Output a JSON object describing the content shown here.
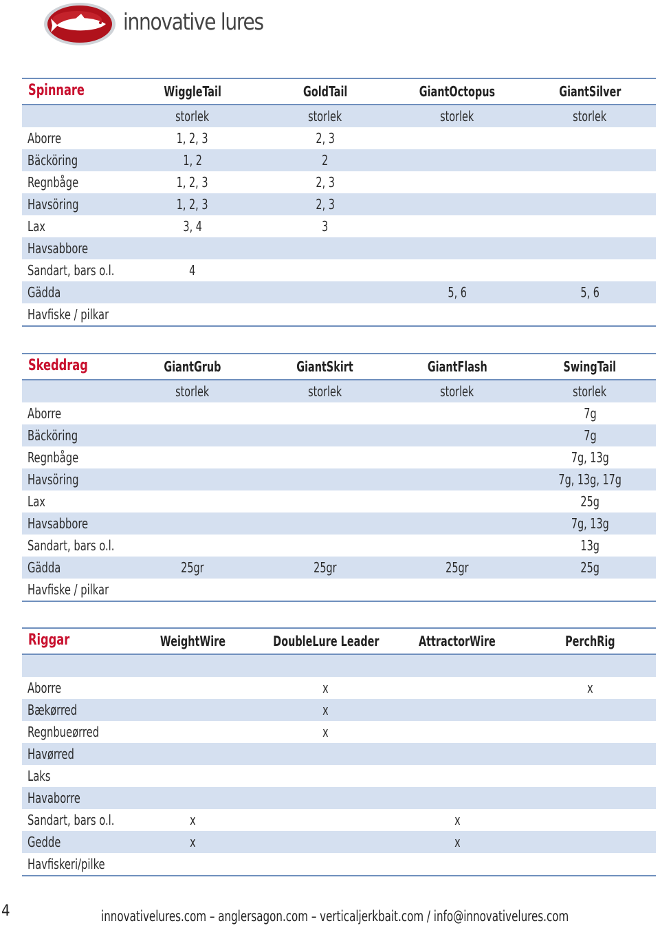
{
  "brand": {
    "name": "innovative lures",
    "logo_icon": "fish-logo-icon"
  },
  "sections": [
    {
      "title": "Spinnare",
      "columns": [
        "WiggleTail",
        "GoldTail",
        "GiantOctopus",
        "GiantSilver"
      ],
      "subheader": [
        "storlek",
        "storlek",
        "storlek",
        "storlek"
      ],
      "rows": [
        {
          "label": "Aborre",
          "cells": [
            "1, 2, 3",
            "2, 3",
            "",
            ""
          ]
        },
        {
          "label": "Bäcköring",
          "cells": [
            "1, 2",
            "2",
            "",
            ""
          ]
        },
        {
          "label": "Regnbåge",
          "cells": [
            "1, 2, 3",
            "2, 3",
            "",
            ""
          ]
        },
        {
          "label": "Havsöring",
          "cells": [
            "1, 2, 3",
            "2, 3",
            "",
            ""
          ]
        },
        {
          "label": "Lax",
          "cells": [
            "3, 4",
            "3",
            "",
            ""
          ]
        },
        {
          "label": "Havsabbore",
          "cells": [
            "",
            "",
            "",
            ""
          ]
        },
        {
          "label": "Sandart, bars o.l.",
          "cells": [
            "4",
            "",
            "",
            ""
          ]
        },
        {
          "label": "Gädda",
          "cells": [
            "",
            "",
            "5, 6",
            "5, 6"
          ]
        },
        {
          "label": "Havfiske / pilkar",
          "cells": [
            "",
            "",
            "",
            ""
          ]
        }
      ]
    },
    {
      "title": "Skeddrag",
      "columns": [
        "GiantGrub",
        "GiantSkirt",
        "GiantFlash",
        "SwingTail"
      ],
      "subheader": [
        "storlek",
        "storlek",
        "storlek",
        "storlek"
      ],
      "rows": [
        {
          "label": "Aborre",
          "cells": [
            "",
            "",
            "",
            "7g"
          ]
        },
        {
          "label": "Bäcköring",
          "cells": [
            "",
            "",
            "",
            "7g"
          ]
        },
        {
          "label": "Regnbåge",
          "cells": [
            "",
            "",
            "",
            "7g, 13g"
          ]
        },
        {
          "label": "Havsöring",
          "cells": [
            "",
            "",
            "",
            "7g, 13g, 17g"
          ]
        },
        {
          "label": "Lax",
          "cells": [
            "",
            "",
            "",
            "25g"
          ]
        },
        {
          "label": "Havsabbore",
          "cells": [
            "",
            "",
            "",
            "7g, 13g"
          ]
        },
        {
          "label": "Sandart, bars o.l.",
          "cells": [
            "",
            "",
            "",
            "13g"
          ]
        },
        {
          "label": "Gädda",
          "cells": [
            "25gr",
            "25gr",
            "25gr",
            "25g"
          ]
        },
        {
          "label": "Havfiske / pilkar",
          "cells": [
            "",
            "",
            "",
            ""
          ]
        }
      ]
    },
    {
      "title": "Riggar",
      "columns": [
        "WeightWire",
        "DoubleLure Leader",
        "AttractorWire",
        "PerchRig"
      ],
      "subheader": [
        "",
        "",
        "",
        ""
      ],
      "rows": [
        {
          "label": "Aborre",
          "cells": [
            "",
            "x",
            "",
            "x"
          ]
        },
        {
          "label": "Bækørred",
          "cells": [
            "",
            "x",
            "",
            ""
          ]
        },
        {
          "label": "Regnbueørred",
          "cells": [
            "",
            "x",
            "",
            ""
          ]
        },
        {
          "label": "Havørred",
          "cells": [
            "",
            "",
            "",
            ""
          ]
        },
        {
          "label": "Laks",
          "cells": [
            "",
            "",
            "",
            ""
          ]
        },
        {
          "label": "Havaborre",
          "cells": [
            "",
            "",
            "",
            ""
          ]
        },
        {
          "label": "Sandart, bars o.l.",
          "cells": [
            "x",
            "",
            "x",
            ""
          ]
        },
        {
          "label": "Gedde",
          "cells": [
            "x",
            "",
            "x",
            ""
          ]
        },
        {
          "label": "Havfiskeri/pilke",
          "cells": [
            "",
            "",
            "",
            ""
          ]
        }
      ]
    }
  ],
  "page_number": "4",
  "footer": "innovativelures.com – anglersagon.com – verticaljerkbait.com / info@innovativelures.com"
}
